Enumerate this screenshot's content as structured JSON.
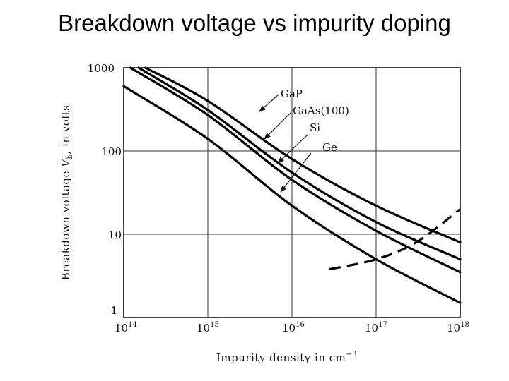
{
  "slide": {
    "title": "Breakdown voltage vs impurity doping"
  },
  "chart_data": {
    "type": "line",
    "title": "Breakdown voltage vs impurity doping",
    "xlabel": "Impurity density in cm",
    "xlabel_exponent": "−3",
    "ylabel": "Breakdown voltage",
    "ylabel_symbol": "V",
    "ylabel_subscript": "b",
    "ylabel_suffix": ", in volts",
    "xscale": "log",
    "yscale": "log",
    "xlim": [
      100000000000000.0,
      1e+18
    ],
    "ylim": [
      1,
      1000
    ],
    "grid": true,
    "x_ticks": [
      {
        "base": "10",
        "exp": "14",
        "value": 100000000000000.0
      },
      {
        "base": "10",
        "exp": "15",
        "value": 1000000000000000.0
      },
      {
        "base": "10",
        "exp": "16",
        "value": 1e+16
      },
      {
        "base": "10",
        "exp": "17",
        "value": 1e+17
      },
      {
        "base": "10",
        "exp": "18",
        "value": 1e+18
      }
    ],
    "y_ticks": [
      {
        "label": "1",
        "value": 1
      },
      {
        "label": "10",
        "value": 10
      },
      {
        "label": "100",
        "value": 100
      },
      {
        "label": "1000",
        "value": 1000
      }
    ],
    "series": [
      {
        "name": "GaP",
        "style": "solid",
        "x": [
          180000000000000.0,
          1000000000000000.0,
          1e+16,
          1e+17,
          1e+18
        ],
        "y": [
          1000,
          400,
          80,
          22,
          8
        ]
      },
      {
        "name": "GaAs(100)",
        "style": "solid",
        "x": [
          150000000000000.0,
          1000000000000000.0,
          1e+16,
          1e+17,
          1e+18
        ],
        "y": [
          1000,
          310,
          55,
          14,
          5
        ]
      },
      {
        "name": "Si",
        "style": "solid",
        "x": [
          120000000000000.0,
          1000000000000000.0,
          1e+16,
          1e+17,
          1e+18
        ],
        "y": [
          1000,
          270,
          45,
          11,
          3.5
        ]
      },
      {
        "name": "Ge",
        "style": "solid",
        "x": [
          100000000000000.0,
          1000000000000000.0,
          1e+16,
          1e+17,
          1e+18
        ],
        "y": [
          600,
          140,
          22,
          5,
          1.5
        ]
      },
      {
        "name": "",
        "style": "dashed",
        "x": [
          2.8e+16,
          1e+17,
          3e+17,
          1e+18
        ],
        "y": [
          3.8,
          5,
          8,
          20
        ]
      }
    ],
    "annotations": [
      {
        "text": "GaP",
        "series": "GaP"
      },
      {
        "text": "GaAs(100)",
        "series": "GaAs(100)"
      },
      {
        "text": "Si",
        "series": "Si"
      },
      {
        "text": "Ge",
        "series": "Ge"
      }
    ]
  }
}
